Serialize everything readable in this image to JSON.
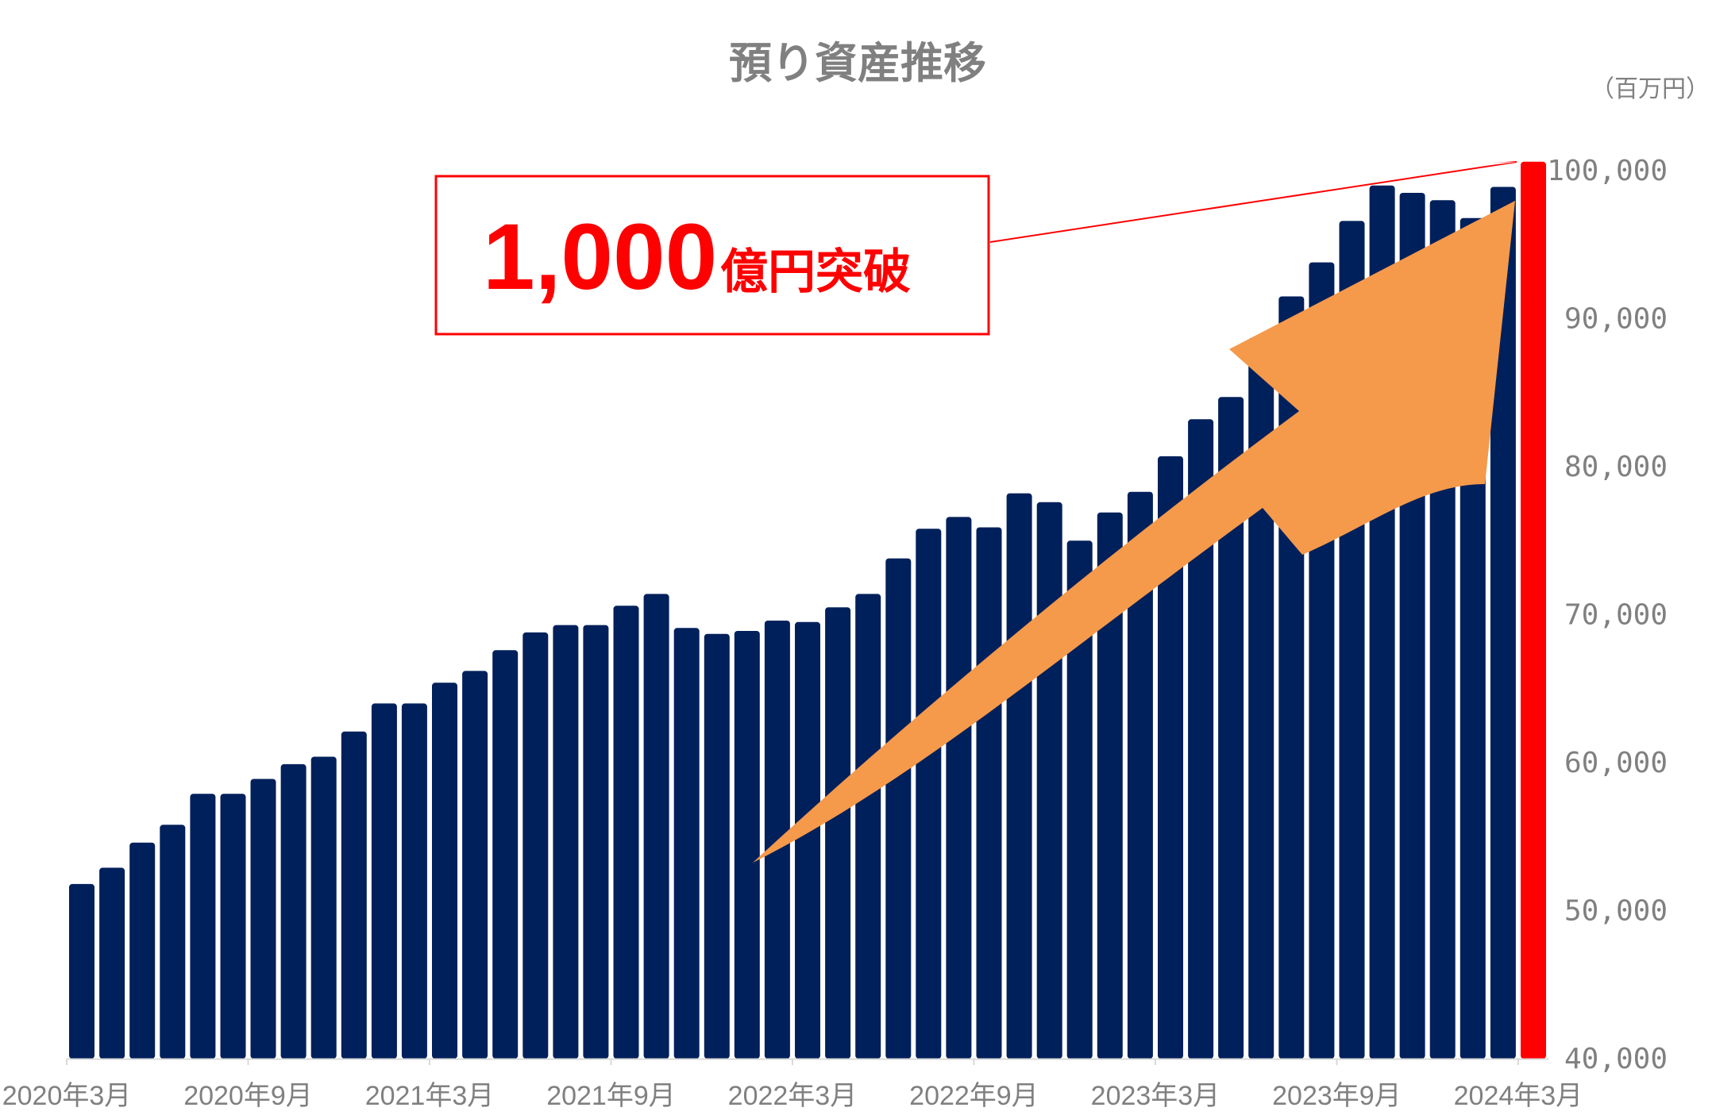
{
  "colors": {
    "bar": "#00205b",
    "highlight": "#ff0000",
    "arrow": "#f5994b",
    "axis_text": "#808080",
    "callout_border": "#ff0000"
  },
  "chart_data": {
    "type": "bar",
    "title": "預り資産推移",
    "unit_label": "（百万円）",
    "y_axis_position": "right",
    "ylim": [
      40000,
      100000
    ],
    "yticks": [
      "40,000",
      "50,000",
      "60,000",
      "70,000",
      "80,000",
      "90,000",
      "100,000"
    ],
    "ytick_values": [
      40000,
      50000,
      60000,
      70000,
      80000,
      90000,
      100000
    ],
    "xtick_labels": [
      "2020年3月",
      "2020年9月",
      "2021年3月",
      "2021年9月",
      "2022年3月",
      "2022年9月",
      "2023年3月",
      "2023年9月",
      "2024年3月"
    ],
    "xtick_indices": [
      0,
      6,
      12,
      18,
      24,
      30,
      36,
      42,
      48
    ],
    "values": [
      51800,
      52900,
      54600,
      55800,
      57900,
      57900,
      58900,
      59900,
      60400,
      62100,
      64000,
      64000,
      65400,
      66200,
      67600,
      68800,
      69300,
      69300,
      70600,
      71400,
      69100,
      68700,
      68900,
      69600,
      69500,
      70500,
      71400,
      73800,
      75800,
      76600,
      75900,
      78200,
      77600,
      75000,
      76900,
      78300,
      80700,
      83200,
      84700,
      88700,
      91500,
      93800,
      96600,
      99000,
      98500,
      98000,
      96800,
      98900,
      100600
    ],
    "highlight_index": 48,
    "annotation": {
      "number": "1,000",
      "text": "億円突破"
    }
  }
}
